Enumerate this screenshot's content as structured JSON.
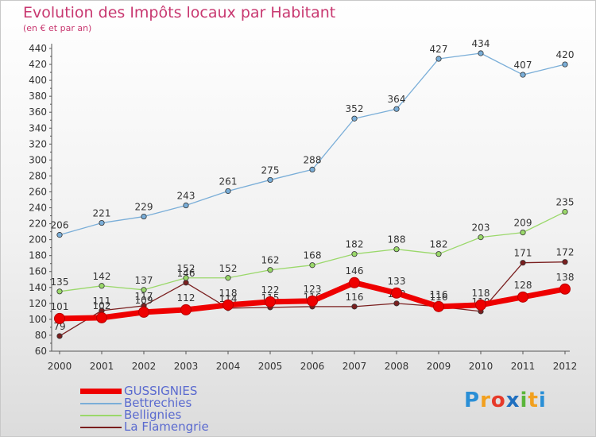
{
  "header": {
    "title": "Evolution des Impôts locaux par Habitant",
    "subtitle": "(en € et par an)"
  },
  "logo": {
    "text": "Proxiti"
  },
  "chart_data": {
    "type": "line",
    "x": [
      "2000",
      "2001",
      "2002",
      "2003",
      "2004",
      "2005",
      "2006",
      "2007",
      "2008",
      "2009",
      "2010",
      "2011",
      "2012"
    ],
    "ylim": [
      60,
      440
    ],
    "yticks": [
      60,
      80,
      100,
      120,
      140,
      160,
      180,
      200,
      220,
      240,
      260,
      280,
      300,
      320,
      340,
      360,
      380,
      400,
      420,
      440
    ],
    "grid": false,
    "legend_position": "bottom-left",
    "series": [
      {
        "name": "La Flamengrie",
        "color": "#7a1f1f",
        "values": [
          79,
          111,
          117,
          146,
          114,
          115,
          116,
          116,
          120,
          116,
          110,
          171,
          172
        ],
        "labels": [
          "79",
          "111",
          "117",
          "146",
          "114",
          "115",
          "116",
          "116",
          "120",
          "116",
          "110",
          "171",
          "172"
        ]
      },
      {
        "name": "Bellignies",
        "color": "#9ad86a",
        "values": [
          135,
          142,
          137,
          152,
          152,
          162,
          168,
          182,
          188,
          182,
          203,
          209,
          235
        ],
        "labels": [
          "135",
          "142",
          "137",
          "152",
          "152",
          "162",
          "168",
          "182",
          "188",
          "182",
          "203",
          "209",
          "235"
        ]
      },
      {
        "name": "Bettrechies",
        "color": "#7aaed8",
        "values": [
          206,
          221,
          229,
          243,
          261,
          275,
          288,
          352,
          364,
          427,
          434,
          407,
          420
        ],
        "labels": [
          "206",
          "221",
          "229",
          "243",
          "261",
          "275",
          "288",
          "352",
          "364",
          "427",
          "434",
          "407",
          "420"
        ]
      },
      {
        "name": "GUSSIGNIES",
        "color": "#ee0000",
        "values": [
          101,
          102,
          109,
          112,
          118,
          122,
          123,
          146,
          133,
          116,
          118,
          128,
          138
        ],
        "labels": [
          "101",
          "102",
          "109",
          "112",
          "118",
          "122",
          "123",
          "146",
          "133",
          "116",
          "118",
          "128",
          "138"
        ]
      }
    ]
  }
}
